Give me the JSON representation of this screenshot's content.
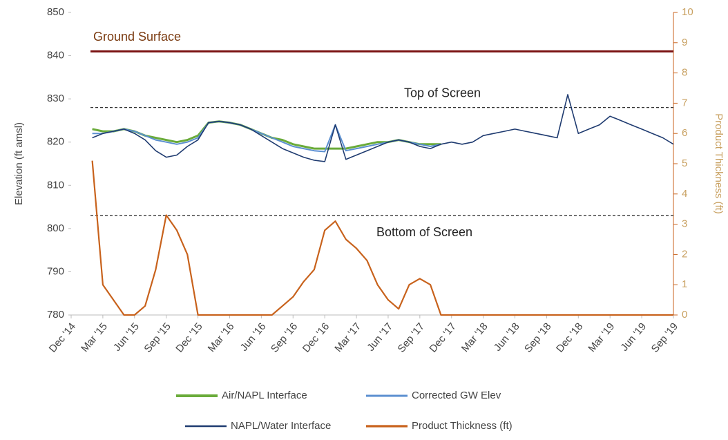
{
  "chart_data": {
    "type": "line",
    "y_label": "Elevation (ft amsl)",
    "y2_label": "Product Thickness (ft)",
    "categories": [
      "Dec '14",
      null,
      null,
      "Mar '15",
      null,
      null,
      "Jun '15",
      null,
      null,
      "Sep '15",
      null,
      null,
      "Dec '15",
      null,
      null,
      "Mar '16",
      null,
      null,
      "Jun '16",
      null,
      null,
      "Sep '16",
      null,
      null,
      "Dec '16",
      null,
      null,
      "Mar '17",
      null,
      null,
      "Jun '17",
      null,
      null,
      "Sep '17",
      null,
      null,
      "Dec '17",
      null,
      null,
      "Mar '18",
      null,
      null,
      "Jun '18",
      null,
      null,
      "Sep '18",
      null,
      null,
      "Dec '18",
      null,
      null,
      "Mar '19",
      null,
      null,
      "Jun '19",
      null,
      null,
      "Sep '19"
    ],
    "ylim": [
      780,
      850
    ],
    "yticks": [
      780,
      790,
      800,
      810,
      820,
      830,
      840,
      850
    ],
    "y2lim": [
      0,
      10
    ],
    "y2ticks": [
      0,
      1,
      2,
      3,
      4,
      5,
      6,
      7,
      8,
      9,
      10
    ],
    "reference_lines": [
      {
        "label": "Ground Surface",
        "value": 841,
        "color": "#7a1010",
        "style": "solid"
      },
      {
        "label": "Top of Screen",
        "value": 828,
        "color": "#333333",
        "style": "dashed"
      },
      {
        "label": "Bottom of Screen",
        "value": 803,
        "color": "#333333",
        "style": "dashed"
      }
    ],
    "series": [
      {
        "name": "Air/NAPL Interface",
        "color": "#6aab3a",
        "width": 3,
        "values": [
          null,
          null,
          823,
          822.5,
          822.5,
          823,
          822.5,
          821.5,
          821,
          820.5,
          820,
          820.5,
          821.5,
          824.5,
          824.8,
          824.5,
          824,
          823,
          822,
          821,
          820.5,
          819.5,
          819,
          818.5,
          818.5,
          818.5,
          818.5,
          819,
          819.5,
          820,
          820,
          820.5,
          820,
          819.5,
          819.5,
          819.5,
          null,
          null,
          null,
          null,
          null,
          null,
          null,
          null,
          null,
          null,
          null,
          null,
          null,
          null,
          null,
          null,
          null,
          null,
          null,
          null,
          null,
          null
        ]
      },
      {
        "name": "Corrected GW Elev",
        "color": "#5b8fd0",
        "width": 2,
        "values": [
          null,
          null,
          822,
          822,
          822.5,
          823,
          822.5,
          821.5,
          820.5,
          820,
          819.5,
          820,
          821,
          824.5,
          824.8,
          824.5,
          824,
          823,
          822,
          821,
          820,
          819,
          818.5,
          818,
          817.8,
          824,
          818,
          818.5,
          819,
          819.5,
          820,
          820.5,
          820,
          819.5,
          819,
          819.5,
          null,
          null,
          null,
          null,
          null,
          null,
          null,
          null,
          null,
          null,
          null,
          null,
          null,
          null,
          null,
          null,
          null,
          null,
          null,
          null,
          null,
          null
        ]
      },
      {
        "name": "NAPL/Water Interface",
        "color": "#1f3b70",
        "width": 1.6,
        "values": [
          null,
          null,
          821,
          822,
          822.5,
          823,
          822,
          820.5,
          818,
          816.5,
          817,
          819,
          820.5,
          824.5,
          824.8,
          824.5,
          824,
          823,
          821.5,
          820,
          818.5,
          817.5,
          816.5,
          815.8,
          815.5,
          824,
          816,
          817,
          818,
          819,
          820,
          820.5,
          820,
          819,
          818.5,
          819.5,
          820,
          819.5,
          820,
          821.5,
          822,
          822.5,
          823,
          822.5,
          822,
          821.5,
          821,
          831,
          822,
          823,
          824,
          826,
          825,
          824,
          823,
          822,
          821,
          819.5
        ]
      },
      {
        "name": "Product Thickness (ft)",
        "color": "#c8621c",
        "width": 2.2,
        "axis": "y2",
        "values": [
          null,
          null,
          5.1,
          1.0,
          0.5,
          0,
          0,
          0.3,
          1.5,
          3.3,
          2.8,
          2.0,
          0,
          0,
          0,
          0,
          0,
          0,
          0,
          0,
          0.3,
          0.6,
          1.1,
          1.5,
          2.8,
          3.1,
          2.5,
          2.2,
          1.8,
          1.0,
          0.5,
          0.2,
          1.0,
          1.2,
          1.0,
          0,
          0,
          0,
          0,
          0,
          0,
          0,
          0,
          0,
          0,
          0,
          0,
          0,
          0,
          0,
          0,
          0,
          0,
          0,
          0,
          0,
          0,
          0
        ]
      }
    ]
  }
}
